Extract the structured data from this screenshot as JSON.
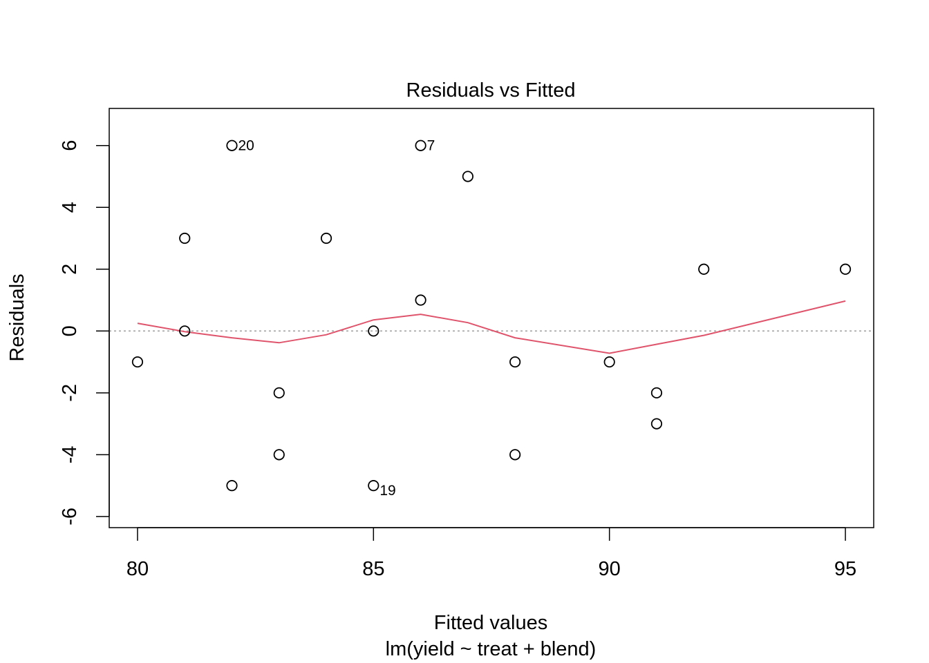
{
  "chart_data": {
    "type": "scatter",
    "title": "Residuals vs Fitted",
    "xlabel": "Fitted values",
    "subtitle": "lm(yield ~ treat + blend)",
    "ylabel": "Residuals",
    "xlim": [
      79.4,
      95.6
    ],
    "ylim": [
      -6.36,
      7.2
    ],
    "xticks": [
      80,
      85,
      90,
      95
    ],
    "yticks": [
      -6,
      -4,
      -2,
      0,
      2,
      4,
      6
    ],
    "grid": false,
    "reference_line": {
      "y": 0,
      "style": "dotted",
      "color": "#9E9E9E"
    },
    "points": [
      {
        "x": 80,
        "y": -1
      },
      {
        "x": 81,
        "y": 3
      },
      {
        "x": 81,
        "y": 0
      },
      {
        "x": 82,
        "y": 6,
        "label": "20"
      },
      {
        "x": 82,
        "y": -5
      },
      {
        "x": 83,
        "y": -2
      },
      {
        "x": 83,
        "y": -4
      },
      {
        "x": 84,
        "y": 3
      },
      {
        "x": 85,
        "y": 0
      },
      {
        "x": 85,
        "y": -5,
        "label": "19"
      },
      {
        "x": 86,
        "y": 6,
        "label": "7"
      },
      {
        "x": 86,
        "y": 1
      },
      {
        "x": 87,
        "y": 5
      },
      {
        "x": 88,
        "y": -1
      },
      {
        "x": 88,
        "y": -4
      },
      {
        "x": 90,
        "y": -1
      },
      {
        "x": 91,
        "y": -2
      },
      {
        "x": 91,
        "y": -3
      },
      {
        "x": 92,
        "y": 2
      },
      {
        "x": 95,
        "y": 2
      }
    ],
    "smooth": {
      "color": "#DF536B",
      "x": [
        80,
        81,
        82,
        83,
        84,
        85,
        86,
        87,
        88,
        90,
        91,
        92,
        95
      ],
      "y": [
        0.25,
        -0.02,
        -0.22,
        -0.38,
        -0.12,
        0.36,
        0.54,
        0.27,
        -0.22,
        -0.72,
        -0.43,
        -0.14,
        0.97
      ]
    }
  }
}
